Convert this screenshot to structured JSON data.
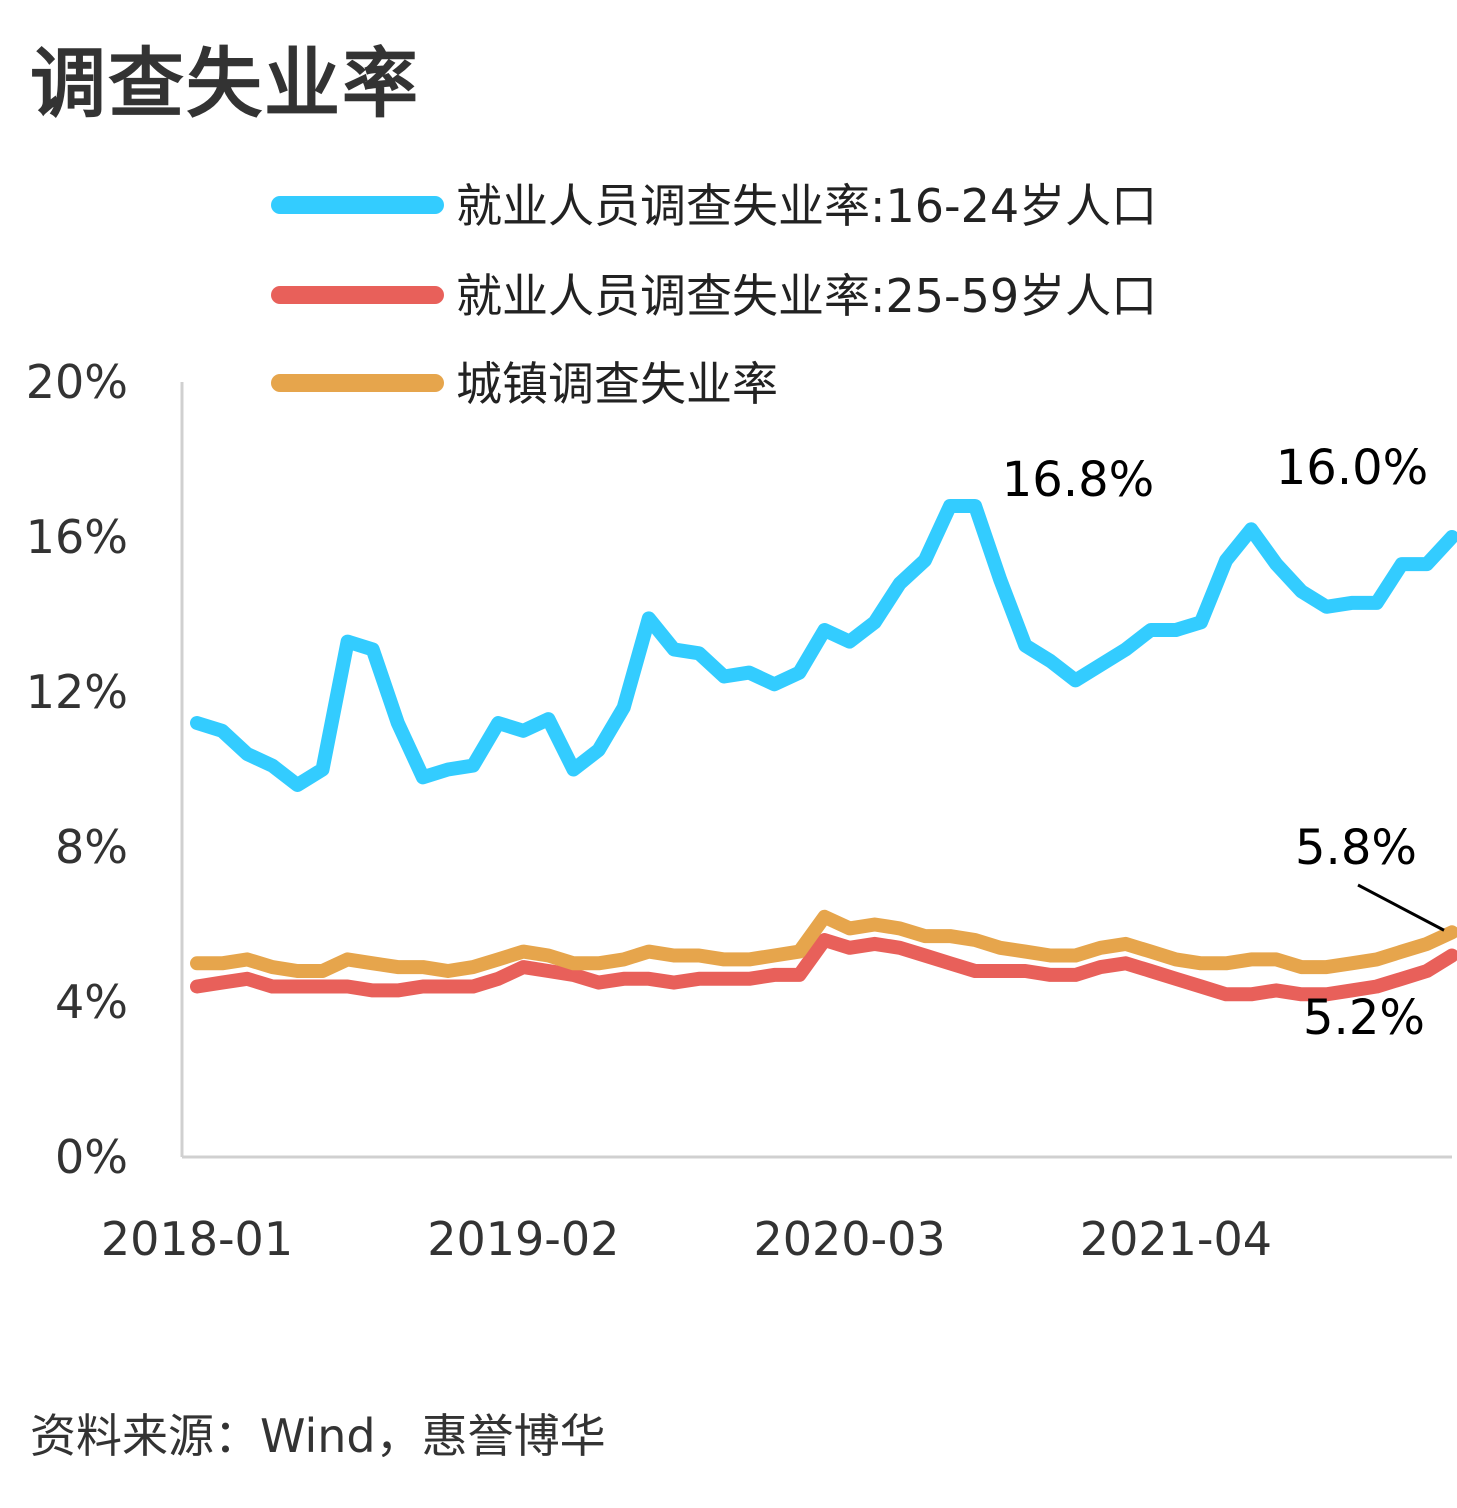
{
  "title": "调查失业率",
  "source": "资料来源：Wind，惠誉博华",
  "chart_data": {
    "type": "line",
    "ylim": [
      0,
      20
    ],
    "yticks": [
      "0%",
      "4%",
      "8%",
      "12%",
      "16%",
      "20%"
    ],
    "ytick_values": [
      0,
      4,
      8,
      12,
      16,
      20
    ],
    "xtick_labels": [
      "2018-01",
      "2019-02",
      "2020-03",
      "2021-04"
    ],
    "xtick_indices": [
      0,
      13,
      26,
      39
    ],
    "grid": false,
    "legend_position": "top-right",
    "x": [
      "2018-01",
      "2018-02",
      "2018-03",
      "2018-04",
      "2018-05",
      "2018-06",
      "2018-07",
      "2018-08",
      "2018-09",
      "2018-10",
      "2018-11",
      "2018-12",
      "2019-01",
      "2019-02",
      "2019-03",
      "2019-04",
      "2019-05",
      "2019-06",
      "2019-07",
      "2019-08",
      "2019-09",
      "2019-10",
      "2019-11",
      "2019-12",
      "2020-01",
      "2020-02",
      "2020-03",
      "2020-04",
      "2020-05",
      "2020-06",
      "2020-07",
      "2020-08",
      "2020-09",
      "2020-10",
      "2020-11",
      "2020-12",
      "2021-01",
      "2021-02",
      "2021-03",
      "2021-04",
      "2021-05",
      "2021-06",
      "2021-07",
      "2021-08",
      "2021-09",
      "2021-10",
      "2021-11",
      "2021-12",
      "2022-01",
      "2022-02",
      "2022-03"
    ],
    "series": [
      {
        "name": "就业人员调查失业率:16-24岁人口",
        "color": "#33ccff",
        "values": [
          11.2,
          11.0,
          10.4,
          10.1,
          9.6,
          10.0,
          13.3,
          13.1,
          11.2,
          9.8,
          10.0,
          10.1,
          11.2,
          11.0,
          11.3,
          10.0,
          10.5,
          11.6,
          13.9,
          13.1,
          13.0,
          12.4,
          12.5,
          12.2,
          12.5,
          13.6,
          13.3,
          13.8,
          14.8,
          15.4,
          16.8,
          16.8,
          14.9,
          13.2,
          12.8,
          12.3,
          12.7,
          13.1,
          13.6,
          13.6,
          13.8,
          15.4,
          16.2,
          15.3,
          14.6,
          14.2,
          14.3,
          14.3,
          15.3,
          15.3,
          16.0
        ]
      },
      {
        "name": "就业人员调查失业率:25-59岁人口",
        "color": "#e8605a",
        "values": [
          4.4,
          4.5,
          4.6,
          4.4,
          4.4,
          4.4,
          4.4,
          4.3,
          4.3,
          4.4,
          4.4,
          4.4,
          4.6,
          4.9,
          4.8,
          4.7,
          4.5,
          4.6,
          4.6,
          4.5,
          4.6,
          4.6,
          4.6,
          4.7,
          4.7,
          5.6,
          5.4,
          5.5,
          5.4,
          5.2,
          5.0,
          4.8,
          4.8,
          4.8,
          4.7,
          4.7,
          4.9,
          5.0,
          4.8,
          4.6,
          4.4,
          4.2,
          4.2,
          4.3,
          4.2,
          4.2,
          4.3,
          4.4,
          4.6,
          4.8,
          5.2
        ]
      },
      {
        "name": "城镇调查失业率",
        "color": "#e6a54c",
        "values": [
          5.0,
          5.0,
          5.1,
          4.9,
          4.8,
          4.8,
          5.1,
          5.0,
          4.9,
          4.9,
          4.8,
          4.9,
          5.1,
          5.3,
          5.2,
          5.0,
          5.0,
          5.1,
          5.3,
          5.2,
          5.2,
          5.1,
          5.1,
          5.2,
          5.3,
          6.2,
          5.9,
          6.0,
          5.9,
          5.7,
          5.7,
          5.6,
          5.4,
          5.3,
          5.2,
          5.2,
          5.4,
          5.5,
          5.3,
          5.1,
          5.0,
          5.0,
          5.1,
          5.1,
          4.9,
          4.9,
          5.0,
          5.1,
          5.3,
          5.5,
          5.8
        ]
      }
    ],
    "annotations": [
      {
        "label": "16.8%",
        "series": 0,
        "index": 30
      },
      {
        "label": "16.0%",
        "series": 0,
        "index": 50
      },
      {
        "label": "5.8%",
        "series": 2,
        "index": 50
      },
      {
        "label": "5.2%",
        "series": 1,
        "index": 50
      }
    ]
  }
}
